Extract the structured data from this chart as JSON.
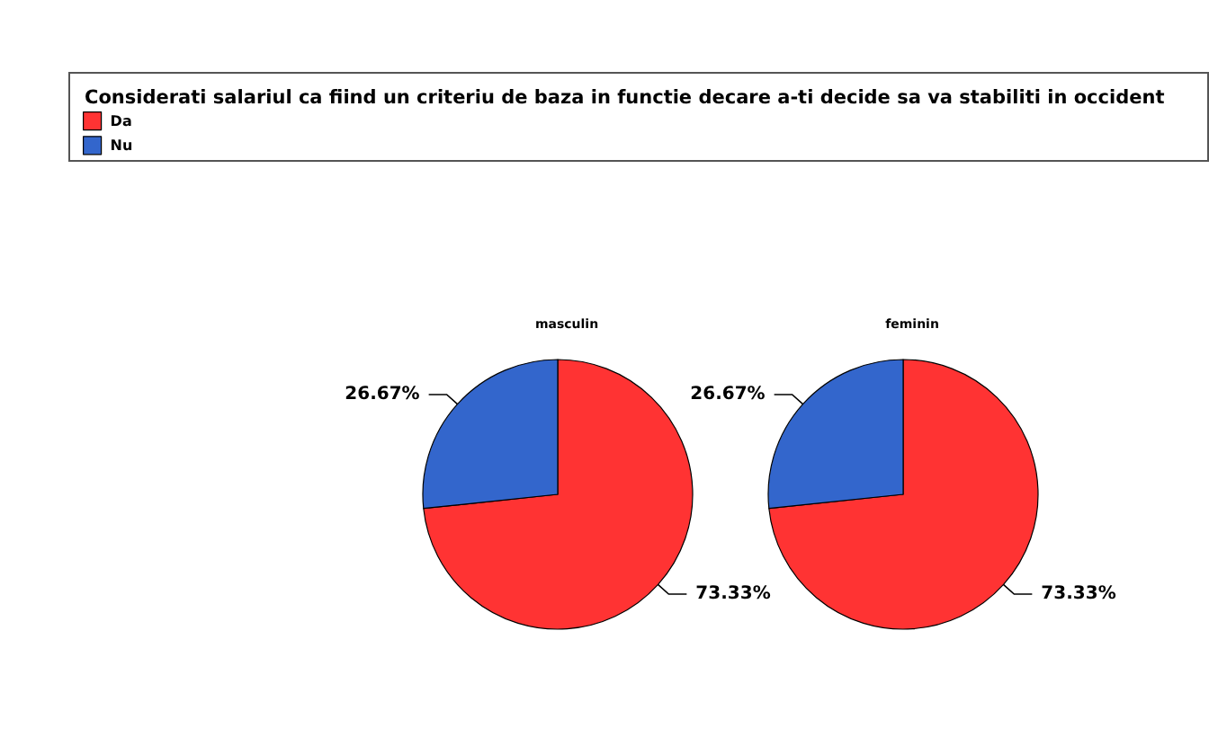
{
  "chart_data": [
    {
      "type": "pie",
      "title": "masculin",
      "legend_title": "Considerati salariul ca fiind un criteriu de baza in functie decare a-ti decide sa va stabiliti in occident",
      "legend": "top left",
      "categories": [
        "Da",
        "Nu"
      ],
      "values": [
        73.33,
        26.67
      ],
      "colors": [
        "#ff3333",
        "#3366cc"
      ],
      "value_labels": [
        "73.33%",
        "26.67%"
      ]
    },
    {
      "type": "pie",
      "title": "feminin",
      "categories": [
        null,
        null
      ],
      "values": [
        73.33,
        26.67
      ],
      "colors": [
        "#ff3333",
        "#3366cc"
      ],
      "value_labels": [
        "73.33%",
        "26.67%"
      ]
    }
  ]
}
